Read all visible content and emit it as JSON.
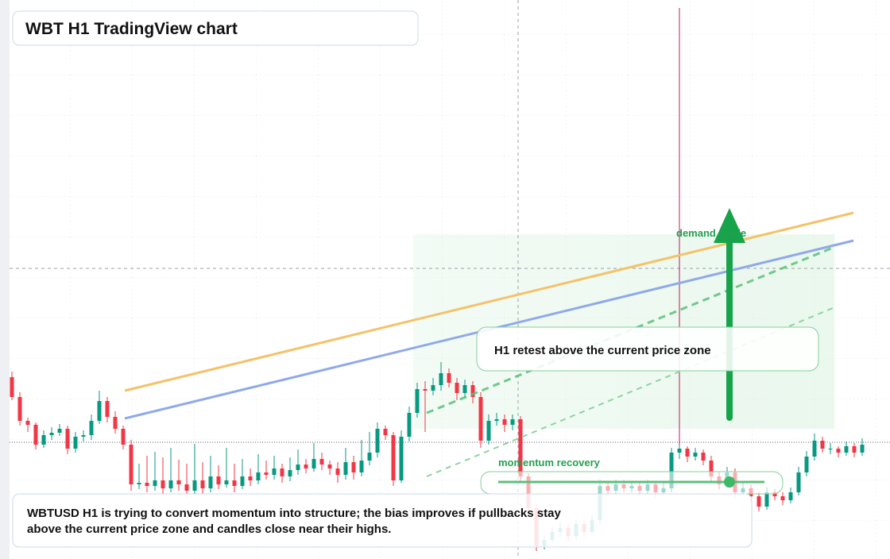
{
  "chart_data": {
    "type": "candlestick",
    "title": "WBT H1 TradingView chart",
    "annotations": {
      "zone": "demand guide",
      "retest": "H1 retest above the current price zone",
      "momentum": "momentum recovery",
      "note": "WBTUSD H1 is trying to convert momentum into structure; the bias improves if pullbacks stay above the current price zone and candles close near their highs."
    },
    "up_color": "#089981",
    "down_color": "#f23645",
    "ylim": [
      0,
      704
    ],
    "candles": [
      [
        229,
        236,
        200,
        204
      ],
      [
        204,
        210,
        168,
        174
      ],
      [
        174,
        178,
        160,
        169
      ],
      [
        169,
        172,
        138,
        144
      ],
      [
        144,
        162,
        140,
        156
      ],
      [
        156,
        166,
        150,
        159
      ],
      [
        159,
        170,
        155,
        164
      ],
      [
        164,
        168,
        132,
        139
      ],
      [
        139,
        160,
        134,
        154
      ],
      [
        154,
        162,
        148,
        156
      ],
      [
        156,
        182,
        150,
        174
      ],
      [
        174,
        212,
        170,
        199
      ],
      [
        199,
        204,
        172,
        179
      ],
      [
        179,
        186,
        158,
        164
      ],
      [
        164,
        168,
        138,
        144
      ],
      [
        144,
        150,
        86,
        94
      ],
      [
        94,
        120,
        88,
        96
      ],
      [
        96,
        130,
        84,
        92
      ],
      [
        92,
        135,
        86,
        99
      ],
      [
        99,
        128,
        82,
        89
      ],
      [
        89,
        140,
        84,
        99
      ],
      [
        99,
        125,
        86,
        94
      ],
      [
        94,
        120,
        78,
        86
      ],
      [
        86,
        145,
        80,
        99
      ],
      [
        99,
        122,
        82,
        89
      ],
      [
        89,
        130,
        84,
        104
      ],
      [
        104,
        118,
        88,
        94
      ],
      [
        94,
        140,
        90,
        99
      ],
      [
        99,
        120,
        84,
        92
      ],
      [
        92,
        126,
        88,
        104
      ],
      [
        104,
        114,
        92,
        99
      ],
      [
        99,
        132,
        94,
        109
      ],
      [
        109,
        124,
        100,
        106
      ],
      [
        106,
        130,
        100,
        114
      ],
      [
        114,
        120,
        96,
        104
      ],
      [
        104,
        128,
        98,
        112
      ],
      [
        112,
        138,
        106,
        119
      ],
      [
        119,
        126,
        108,
        114
      ],
      [
        114,
        146,
        110,
        126
      ],
      [
        126,
        134,
        112,
        119
      ],
      [
        119,
        124,
        106,
        114
      ],
      [
        114,
        122,
        96,
        106
      ],
      [
        106,
        140,
        100,
        122
      ],
      [
        122,
        130,
        100,
        109
      ],
      [
        109,
        150,
        104,
        124
      ],
      [
        124,
        160,
        118,
        134
      ],
      [
        134,
        172,
        128,
        164
      ],
      [
        164,
        168,
        150,
        156
      ],
      [
        156,
        160,
        92,
        99
      ],
      [
        99,
        162,
        96,
        154
      ],
      [
        154,
        192,
        148,
        184
      ],
      [
        184,
        222,
        178,
        214
      ],
      [
        214,
        224,
        160,
        212
      ],
      [
        212,
        228,
        206,
        219
      ],
      [
        219,
        248,
        212,
        234
      ],
      [
        234,
        240,
        216,
        222
      ],
      [
        222,
        228,
        200,
        209
      ],
      [
        209,
        226,
        202,
        219
      ],
      [
        219,
        224,
        196,
        204
      ],
      [
        204,
        210,
        140,
        149
      ],
      [
        149,
        182,
        144,
        174
      ],
      [
        174,
        184,
        168,
        176
      ],
      [
        176,
        182,
        160,
        169
      ],
      [
        169,
        182,
        162,
        176
      ],
      [
        176,
        180,
        96,
        104
      ],
      [
        104,
        108,
        56,
        64
      ],
      [
        64,
        70,
        10,
        16
      ],
      [
        16,
        30,
        12,
        24
      ],
      [
        24,
        40,
        20,
        34
      ],
      [
        34,
        46,
        28,
        39
      ],
      [
        39,
        44,
        22,
        29
      ],
      [
        29,
        50,
        24,
        44
      ],
      [
        44,
        48,
        28,
        34
      ],
      [
        34,
        56,
        30,
        49
      ],
      [
        49,
        100,
        44,
        92
      ],
      [
        92,
        98,
        80,
        86
      ],
      [
        86,
        100,
        82,
        94
      ],
      [
        94,
        100,
        84,
        89
      ],
      [
        89,
        98,
        84,
        92
      ],
      [
        92,
        96,
        80,
        86
      ],
      [
        86,
        100,
        82,
        94
      ],
      [
        94,
        98,
        78,
        84
      ],
      [
        84,
        96,
        80,
        89
      ],
      [
        89,
        140,
        84,
        134
      ],
      [
        134,
        144,
        126,
        139
      ],
      [
        139,
        142,
        122,
        129
      ],
      [
        129,
        140,
        124,
        134
      ],
      [
        134,
        138,
        118,
        124
      ],
      [
        124,
        130,
        98,
        104
      ],
      [
        104,
        110,
        88,
        94
      ],
      [
        94,
        116,
        90,
        109
      ],
      [
        109,
        114,
        78,
        84
      ],
      [
        84,
        96,
        80,
        89
      ],
      [
        89,
        94,
        72,
        79
      ],
      [
        79,
        84,
        60,
        66
      ],
      [
        66,
        90,
        62,
        84
      ],
      [
        84,
        88,
        74,
        79
      ],
      [
        79,
        84,
        68,
        74
      ],
      [
        74,
        90,
        70,
        84
      ],
      [
        84,
        116,
        80,
        109
      ],
      [
        109,
        136,
        104,
        129
      ],
      [
        129,
        158,
        124,
        149
      ],
      [
        149,
        154,
        134,
        139
      ],
      [
        139,
        146,
        132,
        139
      ],
      [
        139,
        142,
        128,
        134
      ],
      [
        134,
        148,
        130,
        142
      ],
      [
        142,
        146,
        128,
        134
      ],
      [
        134,
        152,
        130,
        144
      ]
    ]
  }
}
